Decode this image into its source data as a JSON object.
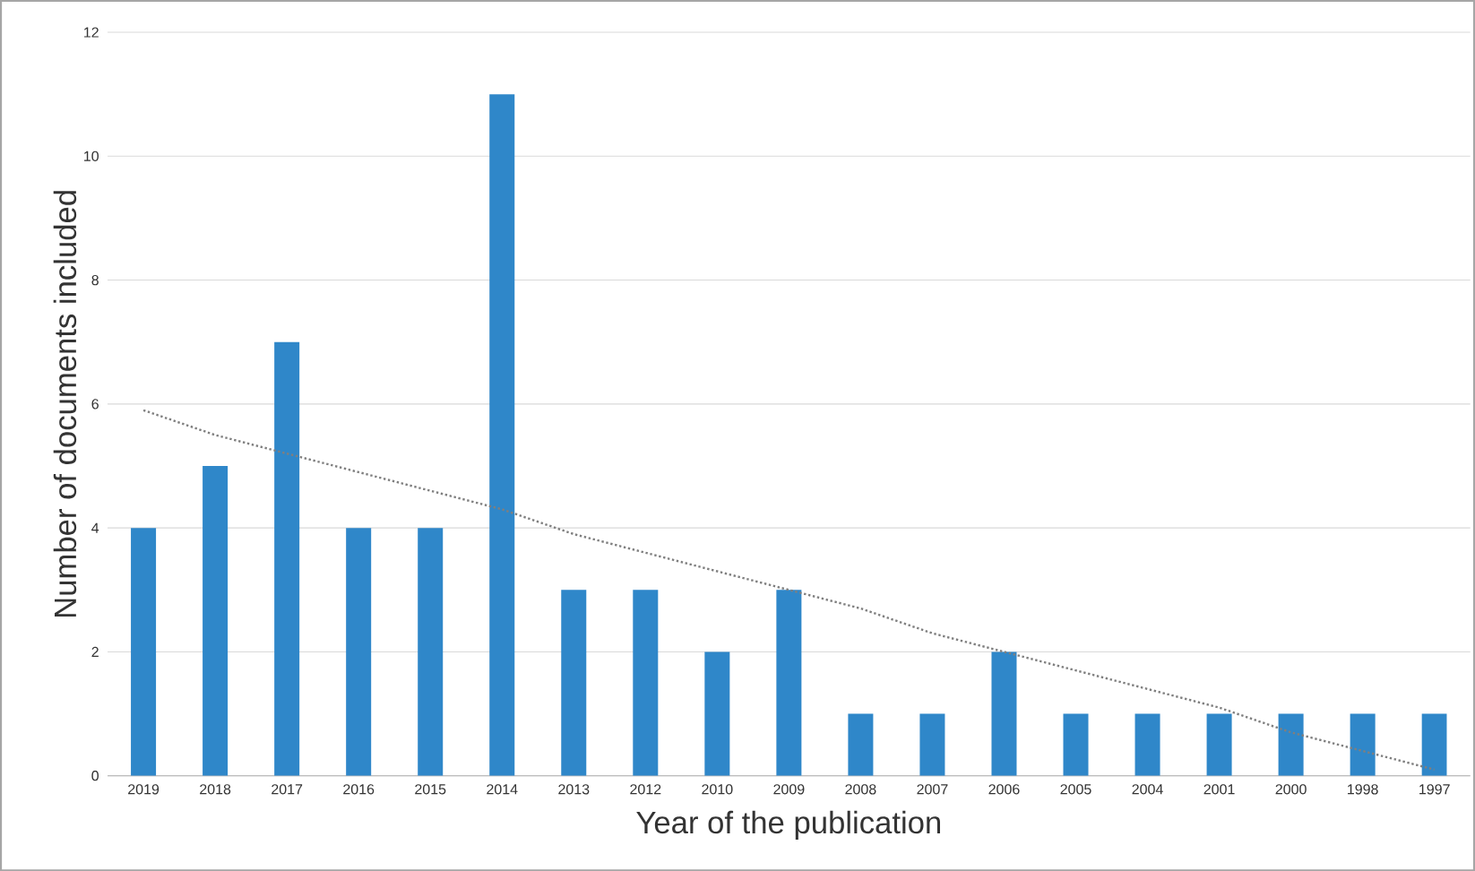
{
  "chart_data": {
    "type": "bar",
    "xlabel": "Year of the publication",
    "ylabel": "Number of documents included",
    "categories": [
      "2019",
      "2018",
      "2017",
      "2016",
      "2015",
      "2014",
      "2013",
      "2012",
      "2010",
      "2009",
      "2008",
      "2007",
      "2006",
      "2005",
      "2004",
      "2001",
      "2000",
      "1998",
      "1997"
    ],
    "series": [
      {
        "color": "#2f87c9",
        "values": [
          4,
          5,
          7,
          4,
          4,
          11,
          3,
          3,
          2,
          3,
          1,
          1,
          2,
          1,
          1,
          1,
          1,
          1,
          1
        ]
      },
      {
        "type": "line",
        "values": [
          5.9,
          5.5,
          5.2,
          4.9,
          4.6,
          4.3,
          3.9,
          3.6,
          3.3,
          3.0,
          2.7,
          2.3,
          2.0,
          1.7,
          1.4,
          1.1,
          0.7,
          0.4,
          0.1
        ],
        "color": "#7f7f7f",
        "line_style": "dotted"
      }
    ],
    "ylim": [
      0,
      12
    ],
    "yticks": [
      0,
      2,
      4,
      6,
      8,
      10,
      12
    ],
    "grid": "y"
  }
}
